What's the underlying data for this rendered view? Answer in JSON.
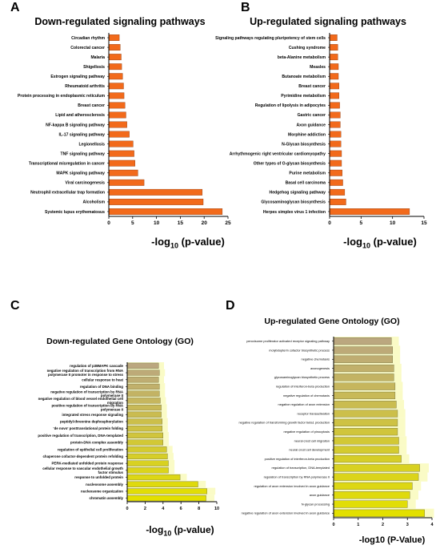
{
  "chart_data": [
    {
      "id": "A",
      "type": "bar",
      "orientation": "horizontal",
      "panel_label": "A",
      "title": "Down-regulated signaling pathways",
      "xlabel": {
        "pre": "-log",
        "sub": "10",
        "post": " (p-value)"
      },
      "xlim": [
        0,
        25
      ],
      "xticks": [
        0,
        5,
        10,
        15,
        20,
        25
      ],
      "bar_color": "#f26a1b",
      "grid": false,
      "categories": [
        "Circadian rhythm",
        "Colorectal cancer",
        "Malaria",
        "Shigellosis",
        "Estrogen signaling pathway",
        "Rheumatoid arthritis",
        "Protein processing in endoplasmic reticulum",
        "Breast cancer",
        "Lipid and atherosclerosis",
        "NF-kappa B signaling pathway",
        "IL-17 signaling pathway",
        "Legionellosis",
        "TNF signaling pathway",
        "Transcriptional misregulation in cancer",
        "MAPK signaling pathway",
        "Viral carcinogenesis",
        "Neutrophil extracellular trap formation",
        "Alcoholism",
        "Systemic lupus erythematosus"
      ],
      "values": [
        2.2,
        2.4,
        2.6,
        2.7,
        2.9,
        3.1,
        3.2,
        3.4,
        3.6,
        3.8,
        4.3,
        5.1,
        5.3,
        5.5,
        6.1,
        7.4,
        19.6,
        19.8,
        23.8
      ]
    },
    {
      "id": "B",
      "type": "bar",
      "orientation": "horizontal",
      "panel_label": "B",
      "title": "Up-regulated signaling pathways",
      "xlabel": {
        "pre": "-log",
        "sub": "10",
        "post": " (p-value)"
      },
      "xlim": [
        0,
        15
      ],
      "xticks": [
        0,
        5,
        10,
        15
      ],
      "bar_color": "#f26a1b",
      "grid": false,
      "categories": [
        "Signaling pathways regulating pluripotency of stem cells",
        "Cushing syndrome",
        "beta-Alanine metabolism",
        "Measles",
        "Butanoate metabolism",
        "Breast cancer",
        "Pyrimidine metabolism",
        "Regulation of lipolysis in adipocytes",
        "Gastric cancer",
        "Axon guidance",
        "Morphine addiction",
        "N-Glycan biosynthesis",
        "Arrhythmogenic right ventricular cardiomyopathy",
        "Other types of O-glycan biosynthesis",
        "Purine metabolism",
        "Basal cell carcinoma",
        "Hedgehog signaling pathway",
        "Glycosaminoglycan biosynthesis",
        "Herpes simplex virus 1 infection"
      ],
      "values": [
        1.2,
        1.3,
        1.3,
        1.4,
        1.4,
        1.5,
        1.5,
        1.6,
        1.7,
        1.7,
        1.8,
        1.8,
        1.9,
        1.9,
        2.0,
        2.1,
        2.4,
        2.6,
        12.7
      ]
    },
    {
      "id": "C",
      "type": "bar",
      "orientation": "horizontal",
      "panel_label": "C",
      "title": "Down-regulated Gene Ontology (GO)",
      "xlabel": {
        "pre": "-log",
        "sub": "10",
        "post": " (p-value)"
      },
      "xlim": [
        0,
        10
      ],
      "xticks": [
        0,
        2,
        4,
        6,
        8,
        10
      ],
      "bar_gradient": [
        "#bba77f",
        "#e3e000"
      ],
      "highlight_color": "#fafbc6",
      "grid": false,
      "categories": [
        "regulation of p38MAPK cascade",
        "negative regulation of transcription from RNA polymerase II promoter in response to stress",
        "cellular response to heat",
        "regulation of DNA binding",
        "negative regulation of transcription by RNA polymerase II",
        "negative regulation of blood vessel endothelial cell migration",
        "positive regulation of transcription by RNA polymerase II",
        "integrated stress response signaling",
        "peptidyl-threonine dephosphorylation",
        "'de novo' posttranslational protein folding",
        "positive regulation of transcription, DNA-templated",
        "protein-DNA complex assembly",
        "regulation of epithelial cell proliferation",
        "chaperone cofactor-dependent protein refolding",
        "PERK-mediated unfolded protein response",
        "cellular response to vascular endothelial growth factor stimulus",
        "response to unfolded protein",
        "nucleosome assembly",
        "nucleosome organization",
        "chromatin assembly"
      ],
      "values": [
        3.5,
        3.6,
        3.5,
        3.6,
        3.6,
        3.7,
        3.8,
        3.8,
        3.9,
        3.9,
        4.0,
        4.0,
        4.4,
        4.5,
        4.6,
        4.6,
        5.9,
        7.9,
        8.9,
        8.8
      ]
    },
    {
      "id": "D",
      "type": "bar",
      "orientation": "horizontal",
      "panel_label": "D",
      "title": "Up-regulated Gene Ontology (GO)",
      "xlabel": {
        "pre": "-log10 (P-Value)",
        "sub": "",
        "post": ""
      },
      "xlim": [
        0,
        4
      ],
      "xticks": [
        0,
        1,
        2,
        3,
        4
      ],
      "bar_gradient": [
        "#bba77f",
        "#e3e000"
      ],
      "highlight_color": "#fafbc6",
      "grid": false,
      "categories": [
        "peroxisome proliferator activated receptor signaling pathway",
        "molybdopterin cofactor biosynthetic process",
        "negative chemotaxis",
        "axonogenesis",
        "glycosaminoglycan biosynthetic process",
        "regulation of interferon-beta production",
        "negative regulation of chemotaxis",
        "negative regulation of axon extension",
        "receptor transactivation",
        "negative regulation of transforming growth factor beta1 production",
        "negative regulation of pinocytosis",
        "neural crest cell migration",
        "neural crest cell development",
        "positive regulation of interferon-beta production",
        "regulation of transcription, DNA-templated",
        "regulation of transcription by RNA polymerase II",
        "regulation of axon extension involved in axon guidance",
        "axon guidance",
        "N-glycan processing",
        "negative regulation of axon extension involved in axon guidance"
      ],
      "values": [
        2.35,
        2.4,
        2.4,
        2.45,
        2.45,
        2.5,
        2.5,
        2.55,
        2.6,
        2.6,
        2.6,
        2.65,
        2.65,
        2.75,
        3.5,
        3.45,
        3.2,
        3.1,
        3.0,
        3.7
      ]
    }
  ]
}
